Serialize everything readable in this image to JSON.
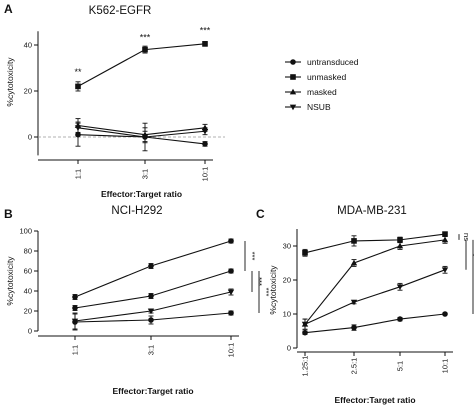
{
  "chart_data": [
    {
      "panel": "A",
      "type": "line",
      "title": "K562-EGFR",
      "ylabel": "%cytotoxicity",
      "xlabel": "Effector:Target ratio",
      "categories": [
        "1:1",
        "3:1",
        "10:1"
      ],
      "y_ticks": [
        0,
        20,
        40
      ],
      "ylim": [
        -8,
        46
      ],
      "reference_line": 0,
      "legend": {
        "placement": "right"
      },
      "series": [
        {
          "name": "untransduced",
          "marker": "circle",
          "values": [
            1,
            0,
            -3
          ],
          "errors": [
            5,
            6,
            1
          ]
        },
        {
          "name": "unmasked",
          "marker": "square",
          "values": [
            22,
            38,
            40.5
          ],
          "errors": [
            2,
            1.5,
            1
          ]
        },
        {
          "name": "masked",
          "marker": "triangle-up",
          "values": [
            5,
            1,
            4
          ],
          "errors": [
            3,
            3,
            1.5
          ]
        },
        {
          "name": "NSUB",
          "marker": "triangle-down",
          "values": [
            4,
            0,
            2.5
          ],
          "errors": [
            2.5,
            2.5,
            1.5
          ]
        }
      ],
      "annotations": [
        {
          "text": "**",
          "category": "1:1",
          "y": 27
        },
        {
          "text": "***",
          "category": "3:1",
          "y": 42
        },
        {
          "text": "***",
          "category": "10:1",
          "y": 45
        }
      ]
    },
    {
      "panel": "B",
      "type": "line",
      "title": "NCI-H292",
      "ylabel": "%cytotoxicity",
      "xlabel": "Effector:Target ratio",
      "categories": [
        "1:1",
        "3:1",
        "10:1"
      ],
      "y_ticks": [
        0,
        20,
        40,
        60,
        80,
        100
      ],
      "ylim": [
        0,
        100
      ],
      "series": [
        {
          "name": "unmasked",
          "marker": "circle",
          "values": [
            34,
            65,
            90
          ],
          "errors": [
            2.5,
            2.5,
            2
          ]
        },
        {
          "name": "masked",
          "marker": "circle",
          "values": [
            23,
            35,
            60
          ],
          "errors": [
            2.5,
            2.5,
            2
          ]
        },
        {
          "name": "NSUB",
          "marker": "triangle-down",
          "values": [
            10,
            20,
            39
          ],
          "errors": [
            8,
            2,
            3
          ]
        },
        {
          "name": "untransduced",
          "marker": "circle",
          "values": [
            9,
            11,
            18
          ],
          "errors": [
            8,
            4,
            2
          ]
        }
      ],
      "significance": [
        {
          "text": "***",
          "from": 90,
          "to": 60
        },
        {
          "text": "***",
          "from": 60,
          "to": 39
        },
        {
          "text": "***",
          "from": 60,
          "to": 18
        }
      ]
    },
    {
      "panel": "C",
      "type": "line",
      "title": "MDA-MB-231",
      "ylabel": "%cytotoxicity",
      "xlabel": "Effector:Target ratio",
      "categories": [
        "1.25:1",
        "2.5:1",
        "5:1",
        "10:1"
      ],
      "y_ticks": [
        0,
        10,
        20,
        30
      ],
      "ylim": [
        0,
        35
      ],
      "series": [
        {
          "name": "unmasked",
          "marker": "square",
          "values": [
            28,
            31.5,
            31.8,
            33.5
          ],
          "errors": [
            1,
            1.5,
            0.8,
            0.5
          ]
        },
        {
          "name": "masked",
          "marker": "triangle-up",
          "values": [
            7,
            25,
            30,
            31.8
          ],
          "errors": [
            1.5,
            1,
            1,
            1
          ]
        },
        {
          "name": "NSUB",
          "marker": "triangle-down",
          "values": [
            7,
            13.5,
            18,
            23
          ],
          "errors": [
            1.5,
            0.5,
            1,
            1
          ]
        },
        {
          "name": "untransduced",
          "marker": "circle",
          "values": [
            4.5,
            6,
            8.5,
            10
          ],
          "errors": [
            0.5,
            0.8,
            0.5,
            0.3
          ]
        }
      ],
      "significance": [
        {
          "text": "ns",
          "from": 33.5,
          "to": 31.8
        },
        {
          "text": "*",
          "from": 31.8,
          "to": 23
        },
        {
          "text": "**",
          "from": 31.8,
          "to": 10
        }
      ]
    }
  ]
}
